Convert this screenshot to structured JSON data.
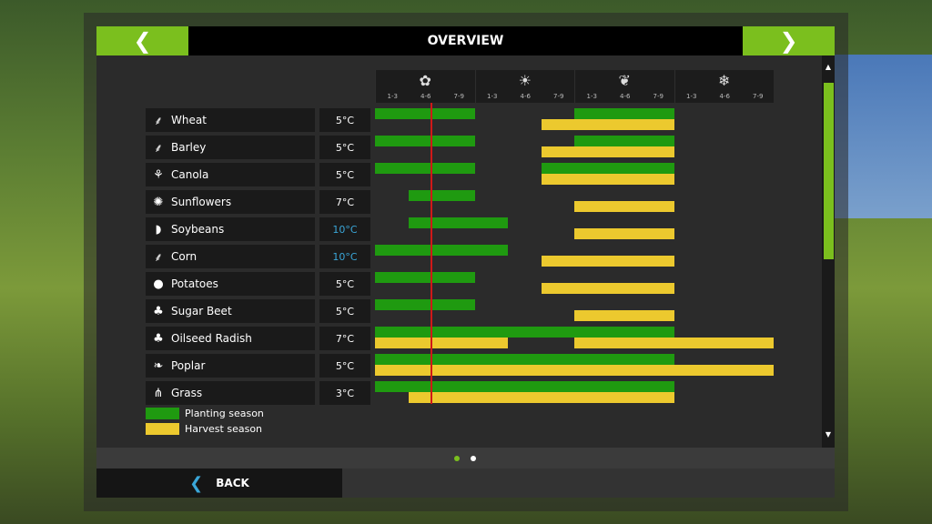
{
  "header": {
    "title": "OVERVIEW",
    "prev_icon": "chevron-left-icon",
    "next_icon": "chevron-right-icon"
  },
  "colors": {
    "accent": "#7bbf1e",
    "planting": "#1f9a10",
    "harvest": "#ecc92e",
    "marker": "#d01818",
    "cold_temp": "#3aa6d8"
  },
  "seasons": [
    {
      "name": "spring",
      "icon": "flower-icon",
      "glyph": "✿",
      "months": [
        "1-3",
        "4-6",
        "7-9"
      ]
    },
    {
      "name": "summer",
      "icon": "sun-icon",
      "glyph": "☀",
      "months": [
        "1-3",
        "4-6",
        "7-9"
      ]
    },
    {
      "name": "autumn",
      "icon": "leaf-icon",
      "glyph": "❦",
      "months": [
        "1-3",
        "4-6",
        "7-9"
      ]
    },
    {
      "name": "winter",
      "icon": "snowflake-icon",
      "glyph": "❄",
      "months": [
        "1-3",
        "4-6",
        "7-9"
      ]
    }
  ],
  "crops": [
    {
      "name": "Wheat",
      "icon": "wheat-icon",
      "glyph": "⸙",
      "temp": "5°C",
      "cold": false,
      "planting": [
        [
          0,
          3
        ],
        [
          6,
          9
        ]
      ],
      "harvest": [
        [
          5,
          9
        ]
      ]
    },
    {
      "name": "Barley",
      "icon": "barley-icon",
      "glyph": "⸙",
      "temp": "5°C",
      "cold": false,
      "planting": [
        [
          0,
          3
        ],
        [
          6,
          9
        ]
      ],
      "harvest": [
        [
          5,
          9
        ]
      ]
    },
    {
      "name": "Canola",
      "icon": "canola-icon",
      "glyph": "⚘",
      "temp": "5°C",
      "cold": false,
      "planting": [
        [
          0,
          3
        ],
        [
          5,
          9
        ]
      ],
      "harvest": [
        [
          5,
          9
        ]
      ]
    },
    {
      "name": "Sunflowers",
      "icon": "sunflower-icon",
      "glyph": "✺",
      "temp": "7°C",
      "cold": false,
      "planting": [
        [
          1,
          3
        ]
      ],
      "harvest": [
        [
          6,
          9
        ]
      ]
    },
    {
      "name": "Soybeans",
      "icon": "soybean-icon",
      "glyph": "◗",
      "temp": "10°C",
      "cold": true,
      "planting": [
        [
          1,
          4
        ]
      ],
      "harvest": [
        [
          6,
          9
        ]
      ]
    },
    {
      "name": "Corn",
      "icon": "corn-icon",
      "glyph": "⸙",
      "temp": "10°C",
      "cold": true,
      "planting": [
        [
          0,
          4
        ]
      ],
      "harvest": [
        [
          5,
          9
        ]
      ]
    },
    {
      "name": "Potatoes",
      "icon": "potato-icon",
      "glyph": "●",
      "temp": "5°C",
      "cold": false,
      "planting": [
        [
          0,
          3
        ]
      ],
      "harvest": [
        [
          5,
          9
        ]
      ]
    },
    {
      "name": "Sugar Beet",
      "icon": "sugar-beet-icon",
      "glyph": "♣",
      "temp": "5°C",
      "cold": false,
      "planting": [
        [
          0,
          3
        ]
      ],
      "harvest": [
        [
          6,
          9
        ]
      ]
    },
    {
      "name": "Oilseed Radish",
      "icon": "oilseed-radish-icon",
      "glyph": "♣",
      "temp": "7°C",
      "cold": false,
      "planting": [
        [
          0,
          9
        ]
      ],
      "harvest": [
        [
          0,
          4
        ],
        [
          6,
          12
        ]
      ]
    },
    {
      "name": "Poplar",
      "icon": "poplar-icon",
      "glyph": "❧",
      "temp": "5°C",
      "cold": false,
      "planting": [
        [
          0,
          9
        ]
      ],
      "harvest": [
        [
          0,
          12
        ]
      ]
    },
    {
      "name": "Grass",
      "icon": "grass-icon",
      "glyph": "⋔",
      "temp": "3°C",
      "cold": false,
      "planting": [
        [
          0,
          9
        ]
      ],
      "harvest": [
        [
          1,
          9
        ]
      ]
    }
  ],
  "legend": {
    "planting": "Planting season",
    "harvest": "Harvest season"
  },
  "pager": {
    "pages": 2,
    "current": 1
  },
  "footer": {
    "back_label": "BACK"
  }
}
